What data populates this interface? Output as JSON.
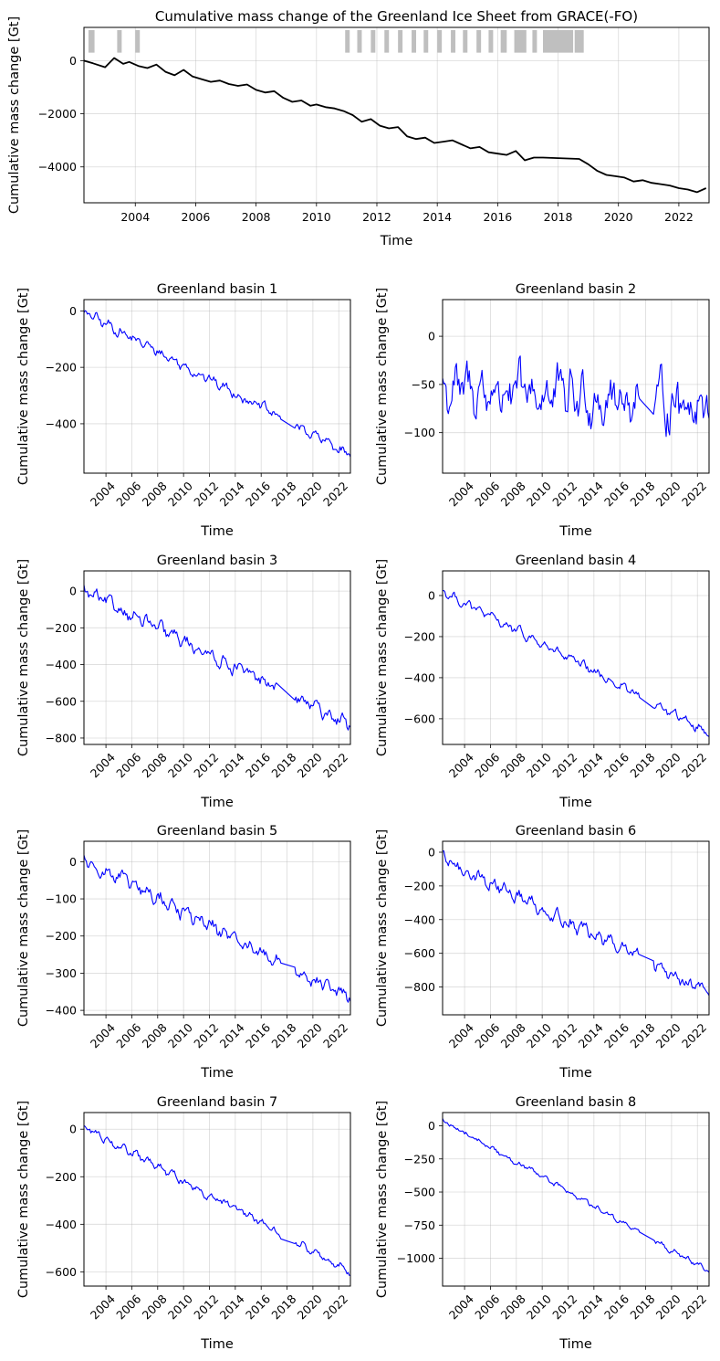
{
  "chart_data": [
    {
      "type": "line",
      "title": "Cumulative mass change of the Greenland Ice Sheet from GRACE(-FO)",
      "xlabel": "Time",
      "ylabel": "Cumulative mass change [Gt]",
      "xlim": [
        2002.3,
        2023.0
      ],
      "ylim": [
        -5350,
        1250
      ],
      "xticks": [
        2004,
        2006,
        2008,
        2010,
        2012,
        2014,
        2016,
        2018,
        2020,
        2022
      ],
      "yticks": [
        0,
        -2000,
        -4000
      ],
      "grid": true,
      "line_color": "#000000",
      "gap_color": "#bfbfbf",
      "data_gaps": [
        [
          2002.45,
          2002.65
        ],
        [
          2003.4,
          2003.55
        ],
        [
          2004.0,
          2004.15
        ],
        [
          2010.95,
          2011.1
        ],
        [
          2011.35,
          2011.5
        ],
        [
          2011.8,
          2011.95
        ],
        [
          2012.25,
          2012.4
        ],
        [
          2012.7,
          2012.85
        ],
        [
          2013.15,
          2013.3
        ],
        [
          2013.55,
          2013.7
        ],
        [
          2014.0,
          2014.15
        ],
        [
          2014.45,
          2014.6
        ],
        [
          2014.85,
          2015.0
        ],
        [
          2015.3,
          2015.45
        ],
        [
          2015.7,
          2015.85
        ],
        [
          2016.1,
          2016.3
        ],
        [
          2016.55,
          2016.95
        ],
        [
          2017.15,
          2017.3
        ],
        [
          2017.5,
          2018.5
        ],
        [
          2018.55,
          2018.85
        ]
      ],
      "x": [
        2002.3,
        2002.6,
        2003.0,
        2003.3,
        2003.6,
        2003.8,
        2004.1,
        2004.4,
        2004.7,
        2005.0,
        2005.3,
        2005.6,
        2005.9,
        2006.2,
        2006.5,
        2006.8,
        2007.1,
        2007.4,
        2007.7,
        2008.0,
        2008.3,
        2008.6,
        2008.9,
        2009.2,
        2009.5,
        2009.8,
        2010.0,
        2010.3,
        2010.6,
        2010.9,
        2011.2,
        2011.5,
        2011.8,
        2012.1,
        2012.4,
        2012.7,
        2013.0,
        2013.3,
        2013.6,
        2013.9,
        2014.2,
        2014.5,
        2014.8,
        2015.1,
        2015.4,
        2015.7,
        2016.0,
        2016.3,
        2016.6,
        2016.9,
        2017.2,
        2017.5,
        2018.7,
        2019.0,
        2019.3,
        2019.6,
        2019.9,
        2020.2,
        2020.5,
        2020.8,
        2021.1,
        2021.4,
        2021.7,
        2022.0,
        2022.3,
        2022.6,
        2022.9
      ],
      "y": [
        0,
        -100,
        -250,
        100,
        -120,
        -50,
        -200,
        -280,
        -150,
        -420,
        -550,
        -350,
        -600,
        -700,
        -800,
        -750,
        -880,
        -950,
        -900,
        -1100,
        -1200,
        -1150,
        -1400,
        -1550,
        -1500,
        -1700,
        -1650,
        -1750,
        -1800,
        -1900,
        -2050,
        -2300,
        -2200,
        -2450,
        -2550,
        -2500,
        -2850,
        -2950,
        -2900,
        -3100,
        -3050,
        -3000,
        -3150,
        -3300,
        -3250,
        -3450,
        -3500,
        -3550,
        -3400,
        -3750,
        -3650,
        -3650,
        -3700,
        -3900,
        -4150,
        -4300,
        -4350,
        -4400,
        -4550,
        -4500,
        -4600,
        -4650,
        -4700,
        -4800,
        -4850,
        -4950,
        -4800
      ]
    },
    {
      "type": "line",
      "title": "Greenland basin 1",
      "xlabel": "Time",
      "ylabel": "Cumulative mass change [Gt]",
      "xlim": [
        2002.3,
        2022.9
      ],
      "ylim": [
        -575,
        40
      ],
      "xticks": [
        2004,
        2006,
        2008,
        2010,
        2012,
        2014,
        2016,
        2018,
        2020,
        2022
      ],
      "yticks": [
        0,
        -200,
        -400
      ],
      "grid": true,
      "line_color": "#0000ff",
      "start": -5,
      "end": -510,
      "noise": 15,
      "plateau": [
        2017.6,
        2018.6
      ]
    },
    {
      "type": "line",
      "title": "Greenland basin 2",
      "xlabel": "Time",
      "ylabel": "Cumulative mass change [Gt]",
      "xlim": [
        2002.3,
        2022.9
      ],
      "ylim": [
        -142,
        38
      ],
      "xticks": [
        2004,
        2006,
        2008,
        2010,
        2012,
        2014,
        2016,
        2018,
        2020,
        2022
      ],
      "yticks": [
        0,
        -50,
        -100
      ],
      "grid": true,
      "line_color": "#0000ff",
      "start": -55,
      "end": -70,
      "noise": 22,
      "plateau": [
        2017.6,
        2018.6
      ]
    },
    {
      "type": "line",
      "title": "Greenland basin 3",
      "xlabel": "Time",
      "ylabel": "Cumulative mass change [Gt]",
      "xlim": [
        2002.3,
        2022.9
      ],
      "ylim": [
        -835,
        110
      ],
      "xticks": [
        2004,
        2006,
        2008,
        2010,
        2012,
        2014,
        2016,
        2018,
        2020,
        2022
      ],
      "yticks": [
        0,
        -200,
        -400,
        -600,
        -800
      ],
      "grid": true,
      "line_color": "#0000ff",
      "start": 0,
      "end": -730,
      "noise": 30,
      "plateau": [
        2017.2,
        2018.6
      ]
    },
    {
      "type": "line",
      "title": "Greenland basin 4",
      "xlabel": "Time",
      "ylabel": "Cumulative mass change [Gt]",
      "xlim": [
        2002.3,
        2022.9
      ],
      "ylim": [
        -725,
        120
      ],
      "xticks": [
        2004,
        2006,
        2008,
        2010,
        2012,
        2014,
        2016,
        2018,
        2020,
        2022
      ],
      "yticks": [
        0,
        -200,
        -400,
        -600
      ],
      "grid": true,
      "line_color": "#0000ff",
      "start": 20,
      "end": -670,
      "noise": 18,
      "plateau": [
        2017.6,
        2018.6
      ]
    },
    {
      "type": "line",
      "title": "Greenland basin 5",
      "xlabel": "Time",
      "ylabel": "Cumulative mass change [Gt]",
      "xlim": [
        2002.3,
        2022.9
      ],
      "ylim": [
        -412,
        55
      ],
      "xticks": [
        2004,
        2006,
        2008,
        2010,
        2012,
        2014,
        2016,
        2018,
        2020,
        2022
      ],
      "yticks": [
        0,
        -100,
        -200,
        -300,
        -400
      ],
      "grid": true,
      "line_color": "#0000ff",
      "start": 5,
      "end": -370,
      "noise": 17,
      "plateau": [
        2017.6,
        2018.6
      ]
    },
    {
      "type": "line",
      "title": "Greenland basin 6",
      "xlabel": "Time",
      "ylabel": "Cumulative mass change [Gt]",
      "xlim": [
        2002.3,
        2022.9
      ],
      "ylim": [
        -965,
        65
      ],
      "xticks": [
        2004,
        2006,
        2008,
        2010,
        2012,
        2014,
        2016,
        2018,
        2020,
        2022
      ],
      "yticks": [
        0,
        -200,
        -400,
        -600,
        -800
      ],
      "grid": true,
      "line_color": "#0000ff",
      "start": -40,
      "end": -830,
      "noise": 35,
      "plateau": [
        2017.6,
        2018.6
      ]
    },
    {
      "type": "line",
      "title": "Greenland basin 7",
      "xlabel": "Time",
      "ylabel": "Cumulative mass change [Gt]",
      "xlim": [
        2002.3,
        2022.9
      ],
      "ylim": [
        -660,
        70
      ],
      "xticks": [
        2004,
        2006,
        2008,
        2010,
        2012,
        2014,
        2016,
        2018,
        2020,
        2022
      ],
      "yticks": [
        0,
        -200,
        -400,
        -600
      ],
      "grid": true,
      "line_color": "#0000ff",
      "start": 10,
      "end": -600,
      "noise": 14,
      "plateau": [
        2017.6,
        2018.6
      ]
    },
    {
      "type": "line",
      "title": "Greenland basin 8",
      "xlabel": "Time",
      "ylabel": "Cumulative mass change [Gt]",
      "xlim": [
        2002.3,
        2022.9
      ],
      "ylim": [
        -1210,
        100
      ],
      "xticks": [
        2004,
        2006,
        2008,
        2010,
        2012,
        2014,
        2016,
        2018,
        2020,
        2022
      ],
      "yticks": [
        0,
        -250,
        -500,
        -750,
        -1000
      ],
      "grid": true,
      "line_color": "#0000ff",
      "start": 40,
      "end": -1100,
      "noise": 16,
      "plateau": [
        2017.6,
        2018.6
      ]
    }
  ]
}
